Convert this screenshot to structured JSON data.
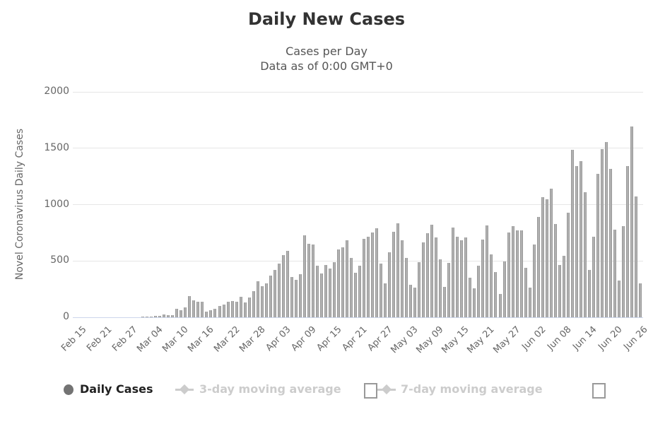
{
  "header": {
    "title": "Daily New Cases",
    "subtitle_line1": "Cases per Day",
    "subtitle_line2": "Data as of 0:00 GMT+0"
  },
  "chart_data": {
    "type": "bar",
    "title": "Daily New Cases",
    "subtitle": [
      "Cases per Day",
      "Data as of 0:00 GMT+0"
    ],
    "ylabel": "Novel Coronavirus Daily Cases",
    "ylim": [
      0,
      2000
    ],
    "yticks": [
      0,
      500,
      1000,
      1500,
      2000
    ],
    "x_tick_interval": 6,
    "grid": true,
    "legend_position": "bottom",
    "categories": [
      "Feb 15",
      "Feb 16",
      "Feb 17",
      "Feb 18",
      "Feb 19",
      "Feb 20",
      "Feb 21",
      "Feb 22",
      "Feb 23",
      "Feb 24",
      "Feb 25",
      "Feb 26",
      "Feb 27",
      "Feb 28",
      "Feb 29",
      "Mar 01",
      "Mar 02",
      "Mar 03",
      "Mar 04",
      "Mar 05",
      "Mar 06",
      "Mar 07",
      "Mar 08",
      "Mar 09",
      "Mar 10",
      "Mar 11",
      "Mar 12",
      "Mar 13",
      "Mar 14",
      "Mar 15",
      "Mar 16",
      "Mar 17",
      "Mar 18",
      "Mar 19",
      "Mar 20",
      "Mar 21",
      "Mar 22",
      "Mar 23",
      "Mar 24",
      "Mar 25",
      "Mar 26",
      "Mar 27",
      "Mar 28",
      "Mar 29",
      "Mar 30",
      "Mar 31",
      "Apr 01",
      "Apr 02",
      "Apr 03",
      "Apr 04",
      "Apr 05",
      "Apr 06",
      "Apr 07",
      "Apr 08",
      "Apr 09",
      "Apr 10",
      "Apr 11",
      "Apr 12",
      "Apr 13",
      "Apr 14",
      "Apr 15",
      "Apr 16",
      "Apr 17",
      "Apr 18",
      "Apr 19",
      "Apr 20",
      "Apr 21",
      "Apr 22",
      "Apr 23",
      "Apr 24",
      "Apr 25",
      "Apr 26",
      "Apr 27",
      "Apr 28",
      "Apr 29",
      "Apr 30",
      "May 01",
      "May 02",
      "May 03",
      "May 04",
      "May 05",
      "May 06",
      "May 07",
      "May 08",
      "May 09",
      "May 10",
      "May 11",
      "May 12",
      "May 13",
      "May 14",
      "May 15",
      "May 16",
      "May 17",
      "May 18",
      "May 19",
      "May 20",
      "May 21",
      "May 22",
      "May 23",
      "May 24",
      "May 25",
      "May 26",
      "May 27",
      "May 28",
      "May 29",
      "May 30",
      "May 31",
      "Jun 01",
      "Jun 02",
      "Jun 03",
      "Jun 04",
      "Jun 05",
      "Jun 06",
      "Jun 07",
      "Jun 08",
      "Jun 09",
      "Jun 10",
      "Jun 11",
      "Jun 12",
      "Jun 13",
      "Jun 14",
      "Jun 15",
      "Jun 16",
      "Jun 17",
      "Jun 18",
      "Jun 19",
      "Jun 20",
      "Jun 21",
      "Jun 22",
      "Jun 23",
      "Jun 24",
      "Jun 25",
      "Jun 26"
    ],
    "values": [
      0,
      0,
      0,
      0,
      0,
      0,
      0,
      0,
      0,
      0,
      0,
      0,
      0,
      0,
      0,
      2,
      3,
      6,
      12,
      15,
      25,
      20,
      18,
      78,
      65,
      90,
      190,
      148,
      136,
      135,
      52,
      63,
      75,
      100,
      115,
      136,
      145,
      140,
      182,
      130,
      178,
      235,
      318,
      277,
      298,
      371,
      423,
      476,
      550,
      590,
      356,
      335,
      381,
      730,
      654,
      643,
      455,
      388,
      465,
      434,
      486,
      601,
      622,
      685,
      528,
      392,
      459,
      696,
      717,
      752,
      790,
      476,
      302,
      576,
      759,
      832,
      681,
      528,
      291,
      262,
      486,
      664,
      748,
      822,
      711,
      511,
      270,
      480,
      794,
      717,
      681,
      711,
      354,
      256,
      455,
      690,
      817,
      560,
      402,
      208,
      497,
      752,
      807,
      769,
      773,
      438,
      266,
      643,
      890,
      1067,
      1050,
      1140,
      825,
      465,
      543,
      927,
      1485,
      1340,
      1385,
      1107,
      417,
      714,
      1275,
      1490,
      1555,
      1315,
      776,
      323,
      811,
      1340,
      1690,
      1074,
      302
    ]
  },
  "legend": {
    "items": [
      {
        "label": "Daily Cases",
        "enabled": true,
        "marker": "circle"
      },
      {
        "label": "3-day moving average",
        "enabled": false,
        "marker": "diamond-line",
        "checkbox": "unchecked"
      },
      {
        "label": "7-day moving average",
        "enabled": false,
        "marker": "diamond-line",
        "checkbox": "unchecked"
      }
    ]
  },
  "colors": {
    "bar": "#9a9a9a",
    "bar_highlight": "#bcbcbc",
    "grid": "#e6e6e6",
    "axis_line": "#ccd6eb",
    "tick_text": "#666666",
    "title_text": "#333333",
    "subtitle_text": "#555555",
    "legend_enabled_text": "#222222",
    "legend_disabled_text": "#cccccc",
    "legend_circle": "#737373",
    "checkbox_border": "#999999"
  }
}
